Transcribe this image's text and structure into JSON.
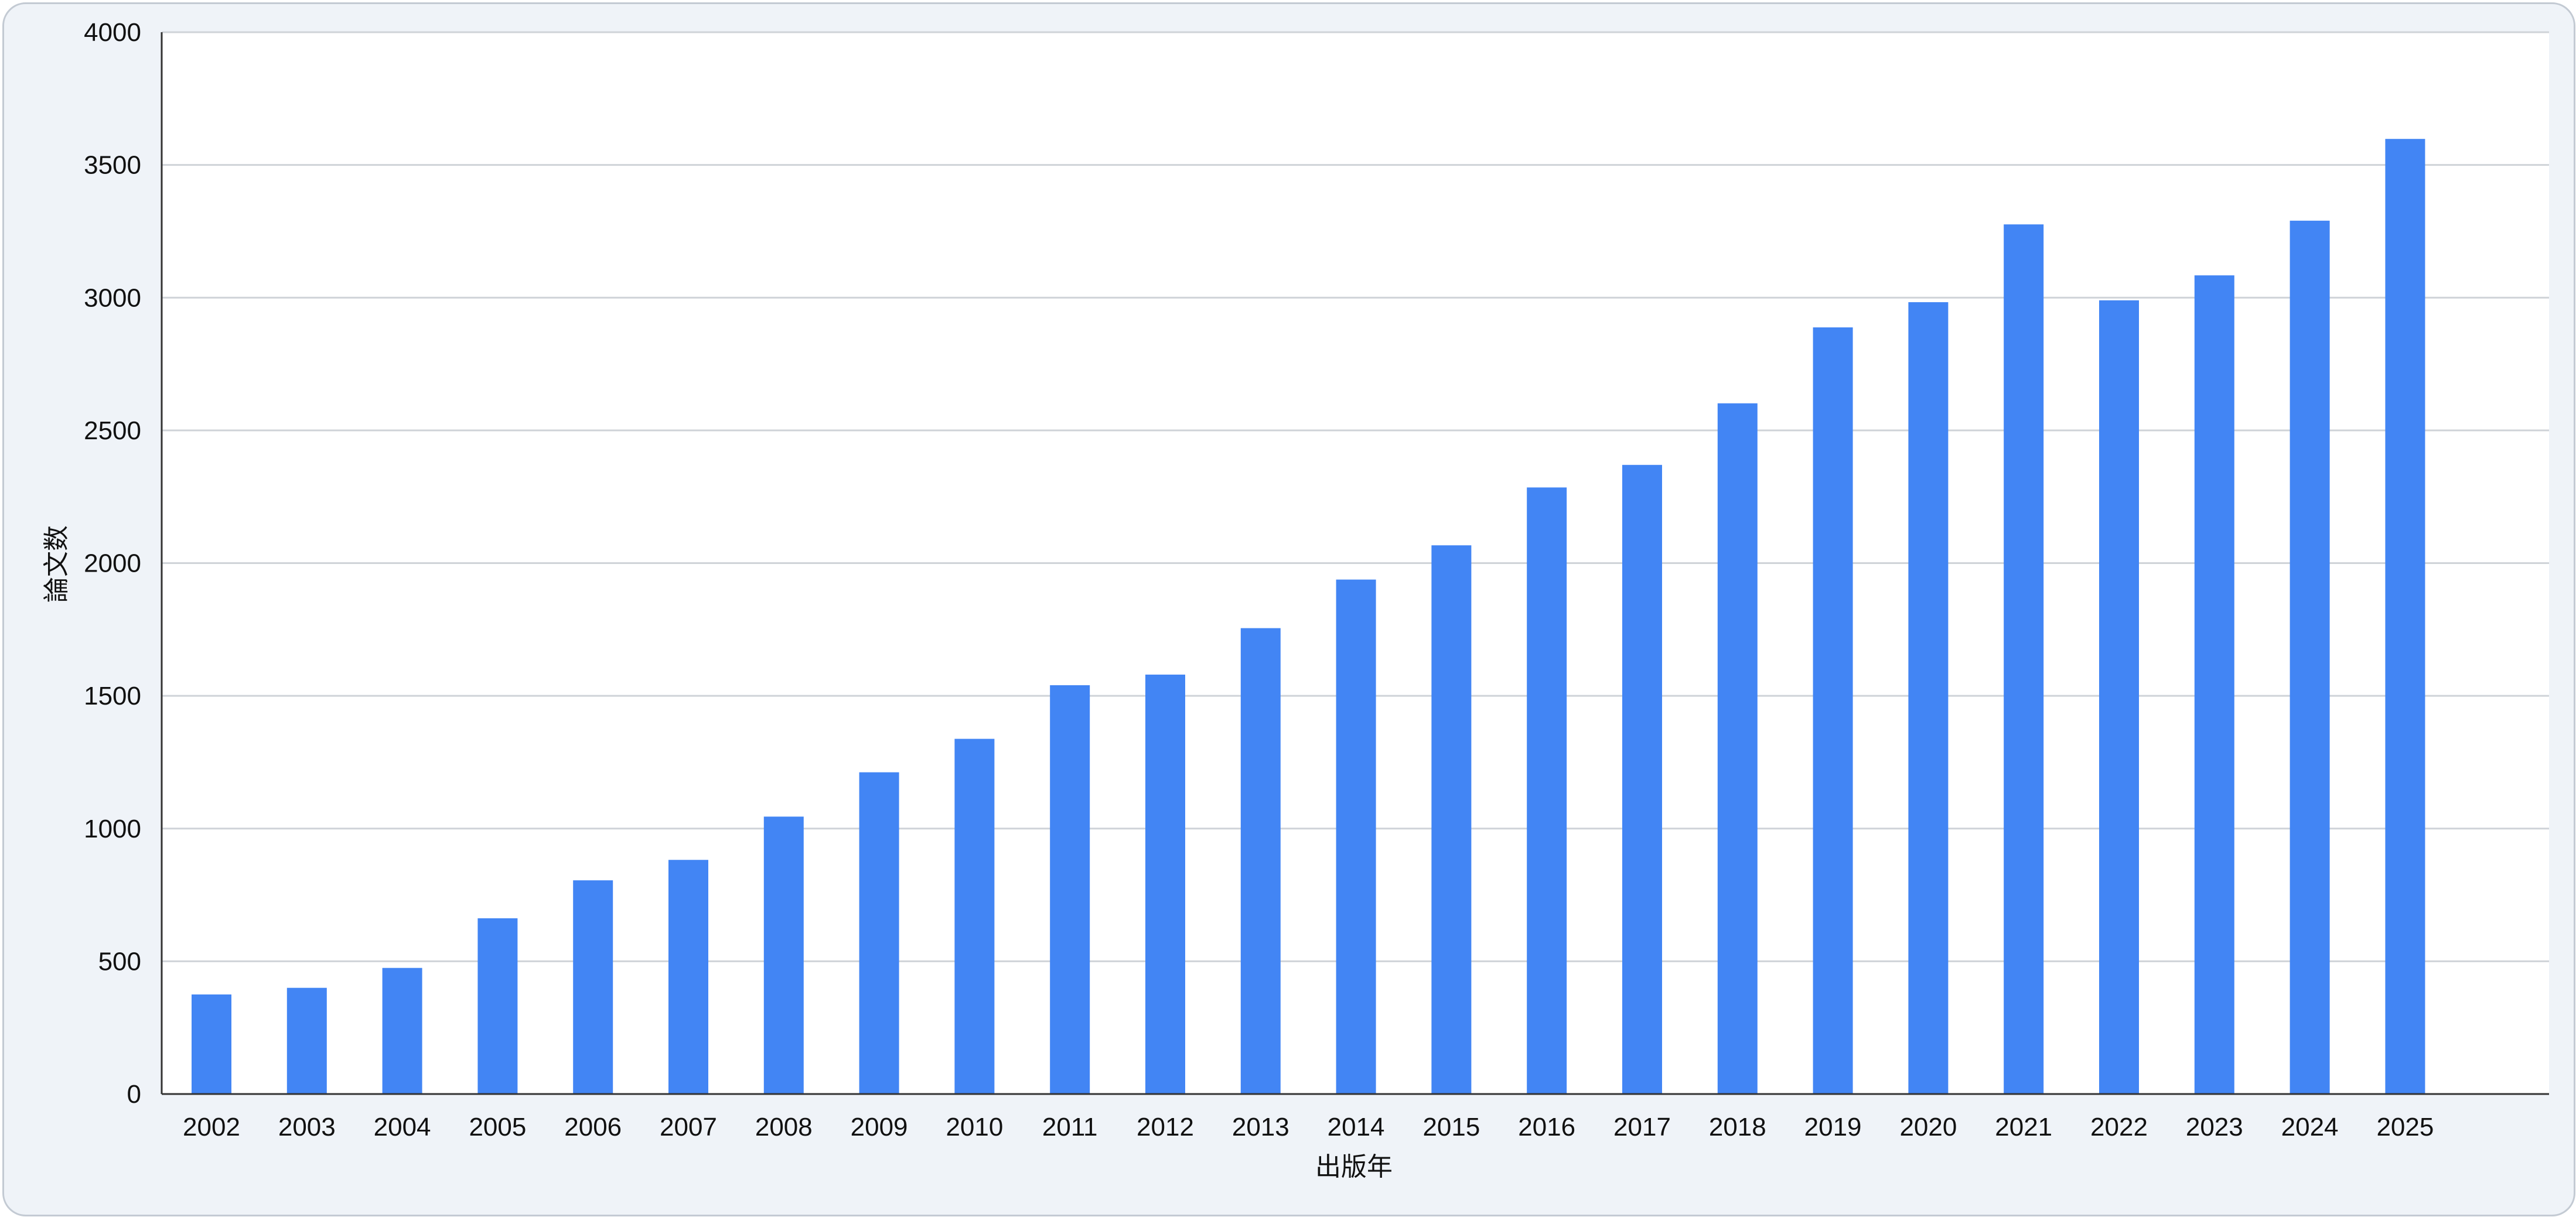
{
  "chart_data": {
    "type": "bar",
    "title": "",
    "xlabel": "出版年",
    "ylabel": "論文数",
    "categories": [
      "2002",
      "2003",
      "2004",
      "2005",
      "2006",
      "2007",
      "2008",
      "2009",
      "2010",
      "2011",
      "2012",
      "2013",
      "2014",
      "2015",
      "2016",
      "2017",
      "2018",
      "2019",
      "2020",
      "2021",
      "2022",
      "2023",
      "2024",
      "2025"
    ],
    "values": [
      375,
      400,
      475,
      662,
      805,
      882,
      1045,
      1212,
      1338,
      1540,
      1580,
      1755,
      1938,
      2067,
      2285,
      2370,
      2602,
      2888,
      2983,
      3276,
      2990,
      3084,
      3290,
      3598
    ],
    "ylim": [
      0,
      4000
    ],
    "yticks": [
      "0",
      "500",
      "1000",
      "1500",
      "2000",
      "2500",
      "3000",
      "3500",
      "4000"
    ],
    "grid": true,
    "legend": "none",
    "colors": {
      "bar": "#4285f4",
      "frame_background": "#eff3f8",
      "plot_background": "#ffffff",
      "gridline": "#cfd3d8",
      "axis": "#333333",
      "text": "#111111"
    }
  }
}
